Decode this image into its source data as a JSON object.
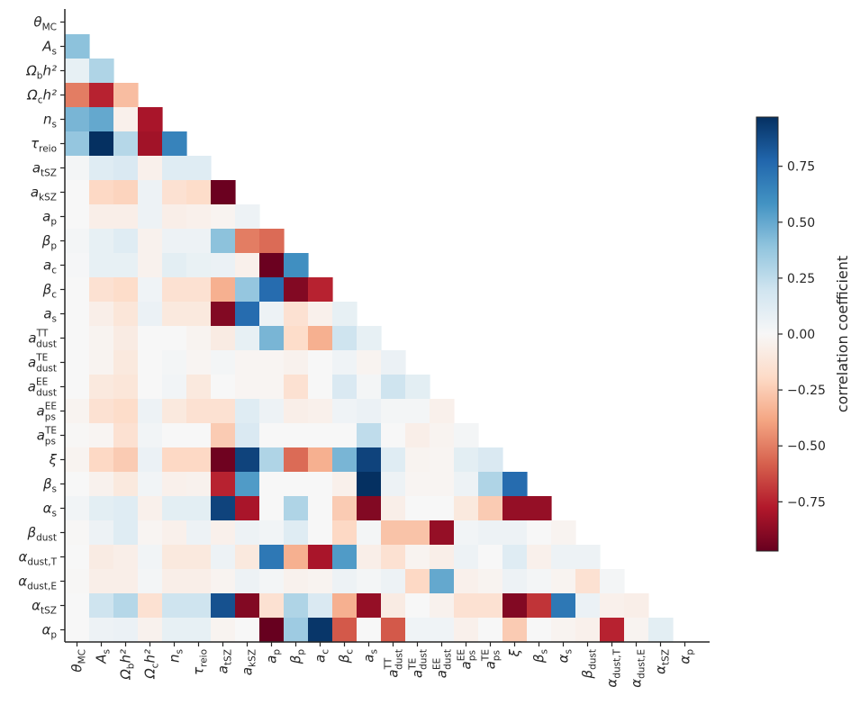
{
  "chart_data": {
    "type": "heatmap",
    "title": "",
    "xlabel": "",
    "ylabel": "",
    "layout": "lower-triangle correlation matrix",
    "colormap": "RdBu",
    "vmin": -0.97,
    "vmax": 0.97,
    "colorbar": {
      "label": "correlation coefficient",
      "ticks": [
        0.75,
        0.5,
        0.25,
        0.0,
        -0.25,
        -0.5,
        -0.75
      ],
      "tick_labels": [
        "0.75",
        "0.50",
        "0.25",
        "0.00",
        "−0.25",
        "−0.50",
        "−0.75"
      ],
      "position": "right"
    },
    "grid": false,
    "parameters": [
      {
        "sym": "θ",
        "sub": "MC",
        "sup": ""
      },
      {
        "sym": "A",
        "sub": "s",
        "sup": "",
        "upright_sub": true
      },
      {
        "sym": "Ω",
        "sub": "b",
        "sup": "",
        "suffix": "h²"
      },
      {
        "sym": "Ω",
        "sub": "c",
        "sup": "",
        "suffix": "h²"
      },
      {
        "sym": "n",
        "sub": "s",
        "sup": ""
      },
      {
        "sym": "τ",
        "sub": "reio",
        "sup": ""
      },
      {
        "sym": "a",
        "sub": "tSZ",
        "sup": ""
      },
      {
        "sym": "a",
        "sub": "kSZ",
        "sup": ""
      },
      {
        "sym": "a",
        "sub": "p",
        "sup": ""
      },
      {
        "sym": "β",
        "sub": "p",
        "sup": ""
      },
      {
        "sym": "a",
        "sub": "c",
        "sup": ""
      },
      {
        "sym": "β",
        "sub": "c",
        "sup": ""
      },
      {
        "sym": "a",
        "sub": "s",
        "sup": ""
      },
      {
        "sym": "a",
        "sub": "dust",
        "sup": "TT"
      },
      {
        "sym": "a",
        "sub": "dust",
        "sup": "TE"
      },
      {
        "sym": "a",
        "sub": "dust",
        "sup": "EE"
      },
      {
        "sym": "a",
        "sub": "ps",
        "sup": "EE"
      },
      {
        "sym": "a",
        "sub": "ps",
        "sup": "TE"
      },
      {
        "sym": "ξ",
        "sub": "",
        "sup": ""
      },
      {
        "sym": "β",
        "sub": "s",
        "sup": ""
      },
      {
        "sym": "α",
        "sub": "s",
        "sup": ""
      },
      {
        "sym": "β",
        "sub": "dust",
        "sup": ""
      },
      {
        "sym": "α",
        "sub": "dust,T",
        "sup": ""
      },
      {
        "sym": "α",
        "sub": "dust,E",
        "sup": ""
      },
      {
        "sym": "α",
        "sub": "tSZ",
        "sup": ""
      },
      {
        "sym": "α",
        "sub": "p",
        "sup": ""
      }
    ],
    "matrix": [
      [],
      [
        0.4
      ],
      [
        0.08,
        0.3
      ],
      [
        -0.5,
        -0.75,
        -0.3
      ],
      [
        0.45,
        0.5,
        -0.05,
        -0.8
      ],
      [
        0.38,
        0.97,
        0.28,
        -0.82,
        0.65
      ],
      [
        0.02,
        0.12,
        0.15,
        -0.05,
        0.12,
        0.12
      ],
      [
        0.0,
        -0.2,
        -0.22,
        0.05,
        -0.15,
        -0.18,
        -0.96
      ],
      [
        0.0,
        -0.06,
        -0.06,
        0.05,
        -0.06,
        -0.05,
        -0.03,
        0.05
      ],
      [
        0.02,
        0.08,
        0.12,
        -0.04,
        0.05,
        0.05,
        0.4,
        -0.5,
        -0.55
      ],
      [
        0.01,
        0.08,
        0.08,
        -0.04,
        0.1,
        0.07,
        0.06,
        -0.05,
        -0.96,
        0.6
      ],
      [
        0.0,
        -0.15,
        -0.18,
        0.04,
        -0.15,
        -0.15,
        -0.35,
        0.38,
        0.75,
        -0.9,
        -0.75
      ],
      [
        0.0,
        -0.06,
        -0.12,
        0.06,
        -0.1,
        -0.1,
        -0.9,
        0.75,
        0.05,
        -0.15,
        -0.05,
        0.08
      ],
      [
        0.0,
        -0.03,
        -0.08,
        0.0,
        0.0,
        -0.03,
        -0.08,
        0.08,
        0.45,
        -0.18,
        -0.35,
        0.2,
        0.08
      ],
      [
        0.0,
        -0.03,
        -0.1,
        0.0,
        0.02,
        -0.02,
        0.02,
        -0.02,
        -0.02,
        -0.04,
        0.0,
        0.04,
        -0.03,
        0.06
      ],
      [
        0.0,
        -0.1,
        -0.12,
        0.0,
        0.03,
        -0.1,
        0.0,
        -0.02,
        -0.02,
        -0.15,
        0.0,
        0.15,
        0.02,
        0.2,
        0.1
      ],
      [
        -0.03,
        -0.15,
        -0.18,
        0.05,
        -0.1,
        -0.15,
        -0.15,
        0.12,
        0.05,
        -0.06,
        -0.05,
        0.04,
        0.06,
        0.02,
        0.02,
        -0.05
      ],
      [
        -0.01,
        -0.02,
        -0.15,
        0.03,
        0.0,
        0.0,
        -0.25,
        0.15,
        0.0,
        0.0,
        0.0,
        0.0,
        0.25,
        0.0,
        -0.06,
        -0.03,
        0.02
      ],
      [
        -0.03,
        -0.2,
        -0.25,
        0.06,
        -0.2,
        -0.2,
        -0.95,
        0.9,
        0.3,
        -0.55,
        -0.35,
        0.45,
        0.9,
        0.12,
        -0.03,
        -0.02,
        0.1,
        0.15
      ],
      [
        0.0,
        -0.04,
        -0.1,
        0.03,
        -0.05,
        -0.04,
        -0.75,
        0.55,
        0.0,
        0.0,
        0.0,
        -0.05,
        0.97,
        0.05,
        -0.02,
        -0.02,
        0.05,
        0.3,
        0.75
      ],
      [
        0.03,
        0.1,
        0.12,
        -0.05,
        0.1,
        0.1,
        0.9,
        -0.8,
        0.0,
        0.3,
        0.0,
        -0.25,
        -0.9,
        -0.06,
        0.0,
        0.0,
        -0.1,
        -0.25,
        -0.85,
        -0.85
      ],
      [
        -0.01,
        0.05,
        0.12,
        -0.02,
        -0.05,
        0.05,
        -0.05,
        0.05,
        0.03,
        0.12,
        0.0,
        -0.2,
        0.02,
        -0.28,
        -0.28,
        -0.85,
        0.03,
        0.05,
        0.05,
        0.0,
        -0.03
      ],
      [
        0.0,
        -0.08,
        -0.06,
        0.03,
        -0.1,
        -0.1,
        0.05,
        -0.1,
        0.7,
        -0.35,
        -0.8,
        0.55,
        -0.06,
        -0.15,
        -0.03,
        -0.06,
        0.05,
        0.0,
        0.12,
        -0.05,
        0.05,
        0.05
      ],
      [
        -0.01,
        -0.06,
        -0.06,
        0.02,
        -0.06,
        -0.06,
        -0.03,
        0.05,
        0.02,
        -0.04,
        -0.03,
        0.05,
        0.02,
        0.05,
        -0.2,
        0.5,
        -0.05,
        -0.03,
        0.05,
        0.02,
        -0.03,
        -0.15,
        0.02
      ],
      [
        0.0,
        0.2,
        0.28,
        -0.15,
        0.2,
        0.2,
        0.85,
        -0.9,
        -0.15,
        0.3,
        0.15,
        -0.35,
        -0.85,
        -0.08,
        0.0,
        -0.04,
        -0.15,
        -0.15,
        -0.9,
        -0.7,
        0.7,
        0.06,
        -0.05,
        -0.06
      ],
      [
        0.0,
        0.05,
        0.06,
        -0.04,
        0.08,
        0.08,
        -0.03,
        0.0,
        -0.97,
        0.35,
        0.95,
        -0.6,
        0.0,
        -0.6,
        0.04,
        0.04,
        -0.05,
        0.0,
        -0.25,
        0.0,
        -0.03,
        -0.05,
        -0.75,
        -0.03,
        0.1
      ]
    ]
  }
}
